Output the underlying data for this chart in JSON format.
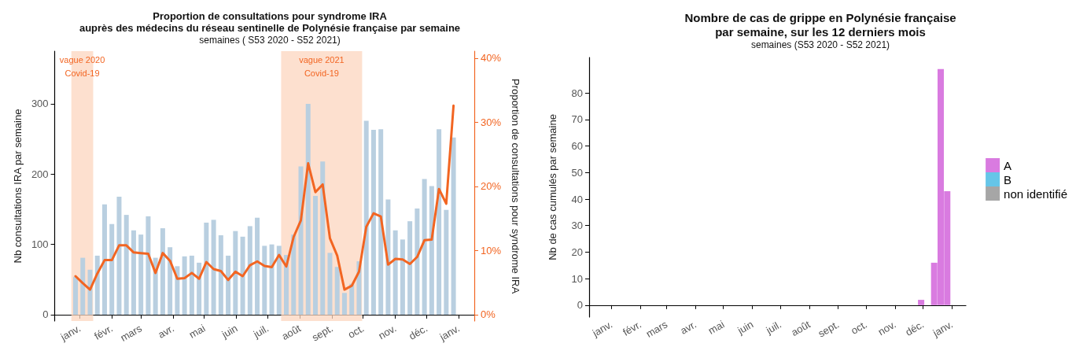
{
  "chart_data": [
    {
      "type": "bar",
      "title": "Proportion de consultations pour syndrome IRA\nauprès des médecins du réseau sentinelle de Polynésie française par semaine",
      "subtitle": "semaines ( S53 2020 - S52 2021)",
      "ylabel": "Nb consultations IRA par semaine",
      "y2label": "Proportion de consultations pour syndrome IRA",
      "x": [
        "2020-12-28",
        "2021-01-04",
        "2021-01-11",
        "2021-01-18",
        "2021-01-25",
        "2021-02-01",
        "2021-02-08",
        "2021-02-15",
        "2021-02-22",
        "2021-03-01",
        "2021-03-08",
        "2021-03-15",
        "2021-03-22",
        "2021-03-29",
        "2021-04-05",
        "2021-04-12",
        "2021-04-19",
        "2021-04-26",
        "2021-05-03",
        "2021-05-10",
        "2021-05-17",
        "2021-05-24",
        "2021-05-31",
        "2021-06-07",
        "2021-06-14",
        "2021-06-21",
        "2021-06-28",
        "2021-07-05",
        "2021-07-12",
        "2021-07-19",
        "2021-07-26",
        "2021-08-02",
        "2021-08-09",
        "2021-08-16",
        "2021-08-23",
        "2021-08-30",
        "2021-09-06",
        "2021-09-13",
        "2021-09-20",
        "2021-09-27",
        "2021-10-04",
        "2021-10-11",
        "2021-10-18",
        "2021-10-25",
        "2021-11-01",
        "2021-11-08",
        "2021-11-15",
        "2021-11-22",
        "2021-11-29",
        "2021-12-06",
        "2021-12-13",
        "2021-12-20",
        "2021-12-27"
      ],
      "xlim": [
        "2020-12-08",
        "2022-01-16"
      ],
      "xticks": [
        {
          "value": "2021-01-01",
          "label": "janv."
        },
        {
          "value": "2021-02-01",
          "label": "févr."
        },
        {
          "value": "2021-03-01",
          "label": "mars"
        },
        {
          "value": "2021-04-01",
          "label": "avr."
        },
        {
          "value": "2021-05-01",
          "label": "mai"
        },
        {
          "value": "2021-06-01",
          "label": "juin"
        },
        {
          "value": "2021-07-01",
          "label": "juil."
        },
        {
          "value": "2021-08-01",
          "label": "août"
        },
        {
          "value": "2021-09-01",
          "label": "sept."
        },
        {
          "value": "2021-10-01",
          "label": "oct."
        },
        {
          "value": "2021-11-01",
          "label": "nov."
        },
        {
          "value": "2021-12-01",
          "label": "déc."
        },
        {
          "value": "2022-01-01",
          "label": "janv."
        }
      ],
      "ylim": [
        -9,
        375
      ],
      "yticks": [
        0,
        100,
        200,
        300
      ],
      "y2lim": [
        -1,
        41.1
      ],
      "y2ticks": [
        {
          "value": 0,
          "label": "0%"
        },
        {
          "value": 10,
          "label": "10%"
        },
        {
          "value": 20,
          "label": "20%"
        },
        {
          "value": 30,
          "label": "30%"
        },
        {
          "value": 40,
          "label": "40%"
        }
      ],
      "series": [
        {
          "type": "bar",
          "color": "#b9cfe0",
          "values": [
            54,
            81,
            64,
            84,
            157,
            129,
            168,
            142,
            120,
            114,
            140,
            81,
            123,
            96,
            69,
            83,
            84,
            74,
            131,
            135,
            113,
            84,
            119,
            111,
            126,
            138,
            98,
            100,
            98,
            85,
            114,
            211,
            300,
            169,
            218,
            88,
            68,
            31,
            44,
            76,
            276,
            263,
            264,
            164,
            120,
            107,
            133,
            151,
            193,
            183,
            264,
            149,
            252
          ]
        },
        {
          "type": "line",
          "axis": "y2",
          "color": "#f26522",
          "values": [
            6.0,
            4.9,
            3.9,
            6.4,
            8.5,
            8.5,
            10.8,
            10.8,
            9.7,
            9.6,
            9.5,
            6.5,
            9.6,
            8.4,
            5.6,
            5.7,
            6.5,
            5.6,
            8.2,
            7.1,
            6.8,
            5.4,
            6.7,
            6.0,
            7.7,
            8.3,
            7.6,
            7.4,
            9.3,
            7.5,
            12.1,
            14.7,
            23.6,
            19.1,
            20.3,
            11.9,
            9.2,
            3.9,
            4.5,
            6.7,
            13.7,
            15.8,
            15.3,
            7.8,
            8.7,
            8.6,
            7.9,
            9.0,
            11.6,
            11.7,
            19.6,
            17.3,
            32.6
          ]
        }
      ],
      "bands": [
        {
          "axis": "x",
          "from": "2020-12-24",
          "to": "2021-01-14",
          "label": "vague 2020\nCovid-19",
          "color": "#fcd5bf"
        },
        {
          "axis": "x",
          "from": "2021-07-14",
          "to": "2021-09-30",
          "label": "vague 2021\nCovid-19",
          "color": "#fcd5bf"
        }
      ]
    },
    {
      "type": "bar",
      "title": "Nombre de cas de grippe en Polynésie française\npar semaine, sur les 12 derniers mois",
      "subtitle": "semaines (S53 2020 - S52 2021)",
      "ylabel": "Nb de cas cumulés par semaine",
      "stacked": true,
      "legend": "right",
      "x": [
        "2021-11-29",
        "2021-12-13",
        "2021-12-20",
        "2021-12-27"
      ],
      "xlim": [
        "2020-12-08",
        "2022-01-16"
      ],
      "xticks": [
        {
          "value": "2021-01-01",
          "label": "janv."
        },
        {
          "value": "2021-02-01",
          "label": "févr."
        },
        {
          "value": "2021-03-01",
          "label": "mars"
        },
        {
          "value": "2021-04-01",
          "label": "avr."
        },
        {
          "value": "2021-05-01",
          "label": "mai"
        },
        {
          "value": "2021-06-01",
          "label": "juin"
        },
        {
          "value": "2021-07-01",
          "label": "juil."
        },
        {
          "value": "2021-08-01",
          "label": "août"
        },
        {
          "value": "2021-09-01",
          "label": "sept."
        },
        {
          "value": "2021-10-01",
          "label": "oct."
        },
        {
          "value": "2021-11-01",
          "label": "nov."
        },
        {
          "value": "2021-12-01",
          "label": "déc."
        },
        {
          "value": "2022-01-01",
          "label": "janv."
        }
      ],
      "ylim": [
        -4.5,
        93.4
      ],
      "yticks": [
        0,
        10,
        20,
        30,
        40,
        50,
        60,
        70,
        80
      ],
      "series": [
        {
          "name": "A",
          "color": "#d97be0",
          "values": [
            2,
            16,
            89,
            43
          ]
        },
        {
          "name": "B",
          "color": "#66c5e8",
          "values": [
            0,
            0,
            0,
            0
          ]
        },
        {
          "name": "non identifié",
          "color": "#a6a6a6",
          "values": [
            0,
            0,
            0,
            0
          ]
        }
      ]
    }
  ]
}
